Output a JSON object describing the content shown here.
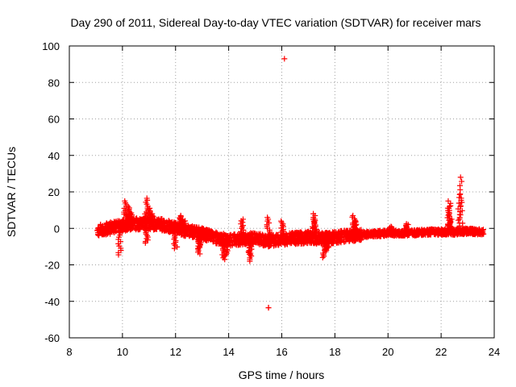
{
  "chart_data": {
    "type": "scatter",
    "title": "Day 290 of 2011, Sidereal Day-to-day VTEC variation (SDTVAR) for receiver mars",
    "xlabel": "GPS time / hours",
    "ylabel": "SDTVAR / TECUs",
    "xlim": [
      8,
      24
    ],
    "ylim": [
      -60,
      100
    ],
    "x_ticks": [
      8,
      10,
      12,
      14,
      16,
      18,
      20,
      22,
      24
    ],
    "y_ticks": [
      -60,
      -40,
      -20,
      0,
      20,
      40,
      60,
      80,
      100
    ],
    "grid": true,
    "marker": "+",
    "color": "#ff0000",
    "trend": [
      [
        9.05,
        -1
      ],
      [
        9.5,
        0
      ],
      [
        10.0,
        1.5
      ],
      [
        10.5,
        2.5
      ],
      [
        11.0,
        2.5
      ],
      [
        11.5,
        2
      ],
      [
        12.0,
        0
      ],
      [
        12.5,
        -1.5
      ],
      [
        13.0,
        -3
      ],
      [
        13.5,
        -5
      ],
      [
        14.0,
        -6.5
      ],
      [
        14.5,
        -6
      ],
      [
        15.0,
        -5.5
      ],
      [
        15.5,
        -7
      ],
      [
        16.0,
        -6
      ],
      [
        16.5,
        -5.5
      ],
      [
        17.0,
        -5
      ],
      [
        17.5,
        -5.5
      ],
      [
        18.0,
        -5
      ],
      [
        18.5,
        -4
      ],
      [
        19.0,
        -3.5
      ],
      [
        19.5,
        -3
      ],
      [
        20.0,
        -2.5
      ],
      [
        20.5,
        -2.5
      ],
      [
        21.0,
        -2.5
      ],
      [
        21.5,
        -2
      ],
      [
        22.0,
        -2
      ],
      [
        22.5,
        -2
      ],
      [
        23.0,
        -1.5
      ],
      [
        23.6,
        -2
      ]
    ],
    "spikes": [
      [
        10.1,
        15
      ],
      [
        10.2,
        12
      ],
      [
        10.3,
        9
      ],
      [
        10.9,
        16.5
      ],
      [
        11.0,
        11
      ],
      [
        11.1,
        8
      ],
      [
        12.2,
        7
      ],
      [
        12.3,
        5
      ],
      [
        14.5,
        5
      ],
      [
        15.5,
        6
      ],
      [
        16.0,
        4
      ],
      [
        17.2,
        8
      ],
      [
        17.25,
        5
      ],
      [
        18.7,
        7
      ],
      [
        18.75,
        4
      ],
      [
        20.1,
        1
      ],
      [
        20.7,
        2.5
      ],
      [
        22.3,
        15
      ],
      [
        22.3,
        12
      ],
      [
        22.35,
        5
      ],
      [
        22.7,
        18.5
      ],
      [
        22.75,
        28
      ]
    ],
    "dips": [
      [
        9.9,
        -14.5
      ],
      [
        10.9,
        -8
      ],
      [
        12.0,
        -11
      ],
      [
        12.9,
        -14
      ],
      [
        12.9,
        -11
      ],
      [
        13.8,
        -17
      ],
      [
        13.9,
        -15
      ],
      [
        14.8,
        -18
      ],
      [
        14.8,
        -15
      ],
      [
        17.6,
        -16
      ],
      [
        17.7,
        -12
      ]
    ],
    "outliers": [
      [
        16.1,
        93
      ],
      [
        15.5,
        -43.5
      ],
      [
        15.5,
        -43.5
      ]
    ]
  }
}
